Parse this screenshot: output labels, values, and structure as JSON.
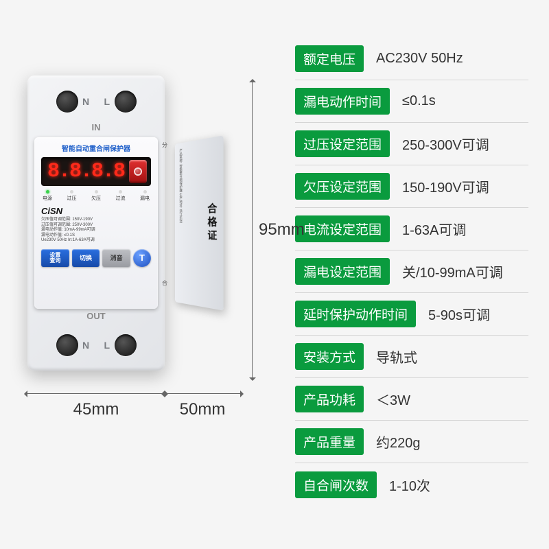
{
  "colors": {
    "spec_key_bg": "#0a9b3e",
    "spec_key_text": "#ffffff",
    "spec_val_text": "#333333",
    "divider": "#d5d5d5",
    "dim_text": "#333333",
    "panel_title": "#1e5fc9",
    "digit": "#ff2a1a",
    "btn_blue": "#1e50c0",
    "logo": "#111111"
  },
  "typography": {
    "spec_key_fontsize": 19,
    "spec_val_fontsize": 20,
    "dim_fontsize": 24
  },
  "dimensions": {
    "height": "95mm",
    "width": "45mm",
    "depth": "50mm"
  },
  "device": {
    "title": "智能自动重合闸保护器",
    "terminals_top": {
      "left": "N",
      "right": "L",
      "io": "IN"
    },
    "terminals_bottom": {
      "left": "N",
      "right": "L",
      "io": "OUT"
    },
    "display_value": "8.8.8.8",
    "leds": [
      "电源",
      "过压",
      "欠压",
      "过流",
      "漏电"
    ],
    "logo": "CiSN",
    "spec_lines": [
      "欠压值可调范围: 150V-190V",
      "过压值可调范围: 250V-300V",
      "漏电动作值: 10mA-99mA可调",
      "漏电动作值: ≤0.1S",
      "Ue230V 50Hz  In:1A-63A可调"
    ],
    "buttons": {
      "b1_line1": "设置",
      "b1_line2": "查询",
      "b2": "切换",
      "b3": "消音",
      "b4": "T"
    },
    "pins": {
      "top": "分",
      "bot": "合"
    },
    "side_label_main": "合格证",
    "side_label_micro": "产品名称: 智能重合闸保护器  生产地址: 浙江乐清"
  },
  "specs": [
    {
      "key": "额定电压",
      "val": "AC230V 50Hz"
    },
    {
      "key": "漏电动作时间",
      "val": "≤0.1s"
    },
    {
      "key": "过压设定范围",
      "val": "250-300V可调"
    },
    {
      "key": "欠压设定范围",
      "val": "150-190V可调"
    },
    {
      "key": "电流设定范围",
      "val": "1-63A可调"
    },
    {
      "key": "漏电设定范围",
      "val": "关/10-99mA可调"
    },
    {
      "key": "延时保护动作时间",
      "val": "5-90s可调"
    },
    {
      "key": "安装方式",
      "val": "导轨式"
    },
    {
      "key": "产品功耗",
      "val": "＜3W"
    },
    {
      "key": "产品重量",
      "val": "约220g"
    },
    {
      "key": "自合闸次数",
      "val": "1-10次"
    }
  ]
}
